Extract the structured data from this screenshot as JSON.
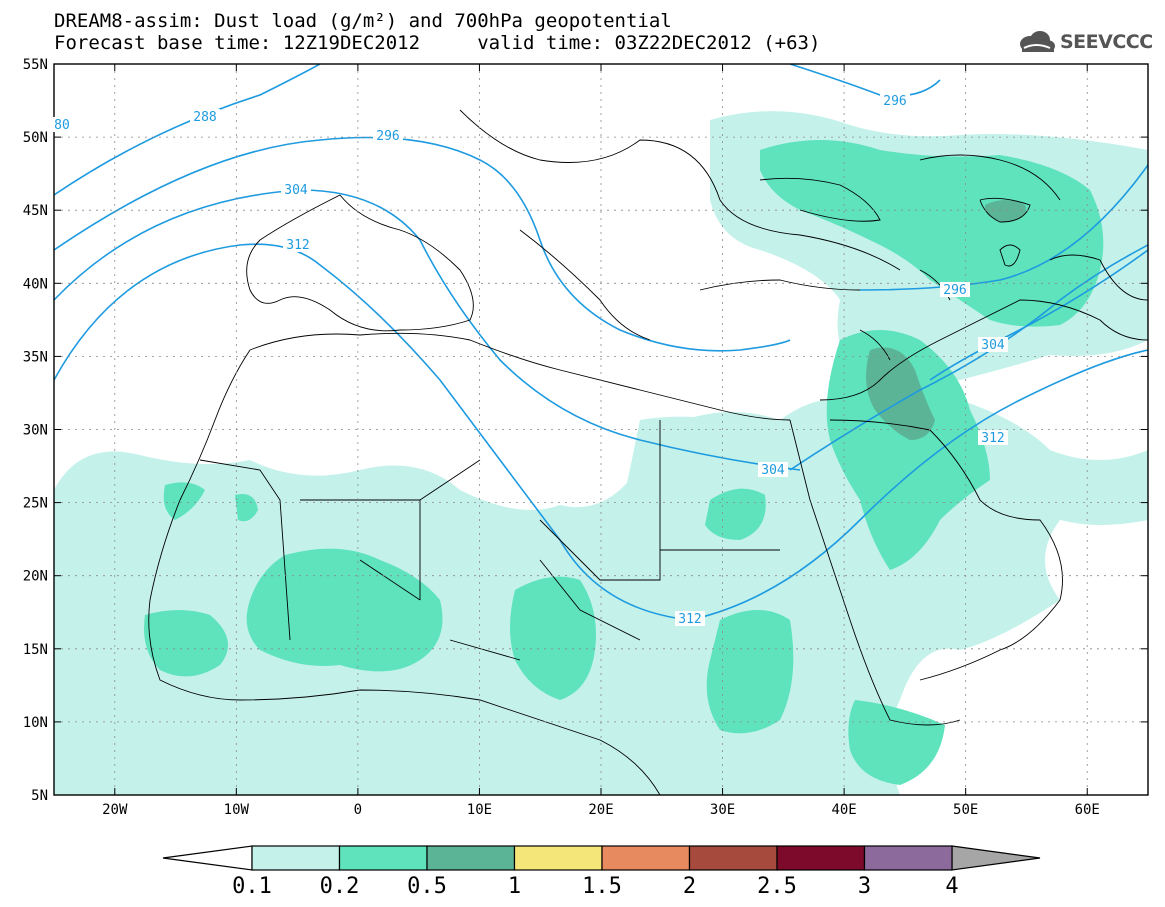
{
  "header": {
    "title": "DREAM8-assim: Dust load (g/m²) and 700hPa geopotential",
    "subtitle": "Forecast base time: 12Z19DEC2012     valid time: 03Z22DEC2012 (+63)"
  },
  "logo": {
    "text": "SEEVCCC",
    "icon": "cloud-logo-icon"
  },
  "map": {
    "lon_range": [
      -25,
      65
    ],
    "lat_range": [
      5,
      55
    ],
    "lon_ticks": [
      "20W",
      "10W",
      "0",
      "10E",
      "20E",
      "30E",
      "40E",
      "50E",
      "60E"
    ],
    "lat_ticks": [
      "55N",
      "50N",
      "45N",
      "40N",
      "35N",
      "30N",
      "25N",
      "20N",
      "15N",
      "10N",
      "5N"
    ],
    "contour_labels": [
      "288",
      "296",
      "304",
      "312",
      "296",
      "296",
      "304",
      "304",
      "312",
      "312",
      "80"
    ]
  },
  "colorbar": {
    "labels": [
      "0.1",
      "0.2",
      "0.5",
      "1",
      "1.5",
      "2",
      "2.5",
      "3",
      "4"
    ],
    "colors": [
      "#c4f2eb",
      "#5ee3bd",
      "#5cb497",
      "#f5e67a",
      "#e88a60",
      "#a54a3c",
      "#7d0a2a",
      "#8c6b9c",
      "#a6a6a6"
    ]
  }
}
